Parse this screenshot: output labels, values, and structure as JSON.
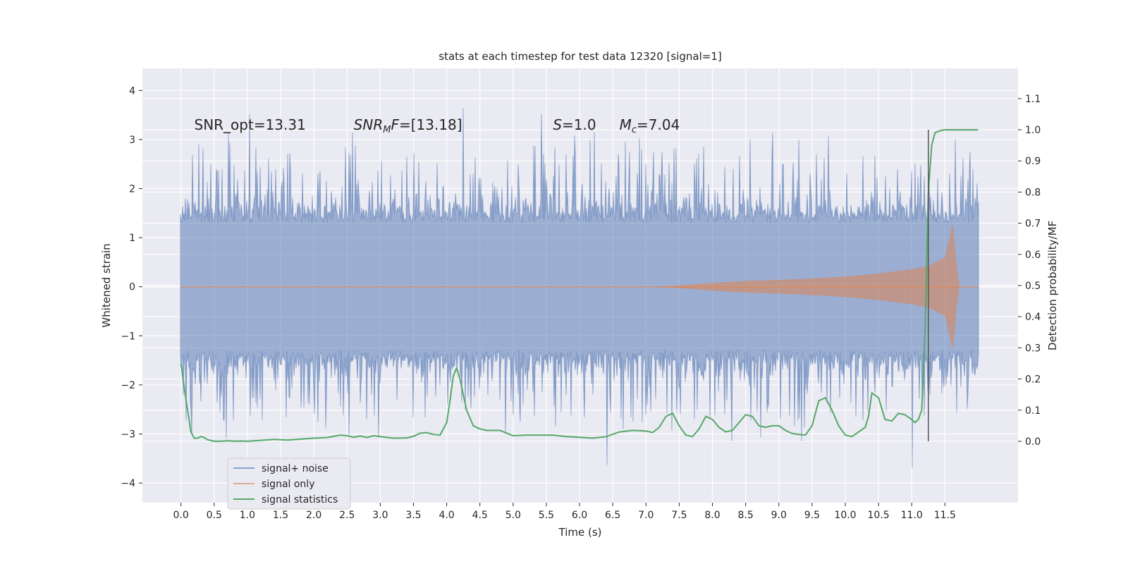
{
  "chart_data": {
    "type": "line",
    "title": "stats at each timestep for test data 12320 [signal=1]",
    "xlabel": "Time (s)",
    "ylabel_left": "Whitened strain",
    "ylabel_right": "Detection probability/MF",
    "xlim": [
      -0.58,
      12.6
    ],
    "ylim_left": [
      -4.4,
      4.45
    ],
    "ylim_right": [
      -0.197,
      1.197
    ],
    "x_ticks": [
      "0.0",
      "0.5",
      "1.0",
      "1.5",
      "2.0",
      "2.5",
      "3.0",
      "3.5",
      "4.0",
      "4.5",
      "5.0",
      "5.5",
      "6.0",
      "6.5",
      "7.0",
      "7.5",
      "8.0",
      "8.5",
      "9.0",
      "9.5",
      "10.0",
      "10.5",
      "11.0",
      "11.5"
    ],
    "y_ticks_left": [
      "4",
      "3",
      "2",
      "1",
      "0",
      "−1",
      "−2",
      "−3",
      "−4"
    ],
    "y_ticks_right": [
      "1.1",
      "1.0",
      "0.9",
      "0.8",
      "0.7",
      "0.6",
      "0.5",
      "0.4",
      "0.3",
      "0.2",
      "0.1",
      "0.0"
    ],
    "grid": true,
    "legend_position": "lower-left",
    "annotations": [
      {
        "text": "SNR_opt=13.31",
        "x": 0.2,
        "y": 3.3
      },
      {
        "text": "SNR_MF=[13.18]",
        "x": 2.6,
        "y": 3.3
      },
      {
        "text": "S=1.0",
        "x": 5.6,
        "y": 3.3
      },
      {
        "text": "M_c=7.04",
        "x": 6.6,
        "y": 3.3
      }
    ],
    "vertical_line": {
      "x": 11.25,
      "y_range": [
        0.0,
        1.0
      ]
    },
    "series": [
      {
        "name": "signal+ noise",
        "color": "#4c72b0",
        "x_range": [
          0.0,
          12.0
        ],
        "description_stats": {
          "typical_abs": 1.3,
          "peak_max": 4.1,
          "peak_min": -4.0
        }
      },
      {
        "name": "signal only",
        "color": "#dd8452",
        "envelope": {
          "x": [
            0.0,
            7.0,
            7.5,
            8.0,
            8.5,
            9.0,
            9.5,
            10.0,
            10.5,
            11.0,
            11.25,
            11.5,
            11.62,
            11.68,
            11.72,
            12.0
          ],
          "amplitude": [
            0.0,
            0.0,
            0.03,
            0.08,
            0.12,
            0.14,
            0.17,
            0.21,
            0.27,
            0.36,
            0.42,
            0.6,
            1.3,
            0.4,
            0.0,
            0.0
          ]
        }
      },
      {
        "name": "signal statistics",
        "color": "#55a868",
        "axis": "right",
        "x": [
          0.0,
          0.05,
          0.1,
          0.15,
          0.2,
          0.25,
          0.3,
          0.35,
          0.4,
          0.5,
          0.6,
          0.7,
          0.8,
          0.9,
          1.0,
          1.2,
          1.4,
          1.6,
          1.8,
          2.0,
          2.2,
          2.4,
          2.5,
          2.6,
          2.7,
          2.8,
          2.9,
          3.0,
          3.2,
          3.4,
          3.5,
          3.6,
          3.7,
          3.8,
          3.9,
          4.0,
          4.05,
          4.1,
          4.15,
          4.2,
          4.25,
          4.3,
          4.4,
          4.5,
          4.6,
          4.8,
          5.0,
          5.2,
          5.4,
          5.6,
          5.8,
          6.0,
          6.2,
          6.4,
          6.6,
          6.8,
          7.0,
          7.1,
          7.2,
          7.3,
          7.4,
          7.5,
          7.6,
          7.7,
          7.8,
          7.9,
          8.0,
          8.1,
          8.2,
          8.3,
          8.4,
          8.5,
          8.6,
          8.7,
          8.8,
          8.9,
          9.0,
          9.1,
          9.2,
          9.3,
          9.4,
          9.5,
          9.6,
          9.7,
          9.8,
          9.9,
          10.0,
          10.1,
          10.2,
          10.3,
          10.35,
          10.4,
          10.5,
          10.6,
          10.7,
          10.8,
          10.9,
          11.0,
          11.05,
          11.1,
          11.15,
          11.2,
          11.25,
          11.3,
          11.35,
          11.4,
          11.45,
          11.5,
          11.6,
          11.8,
          12.0
        ],
        "values": [
          0.25,
          0.17,
          0.1,
          0.03,
          0.01,
          0.01,
          0.015,
          0.012,
          0.005,
          0.0,
          0.0,
          0.002,
          0.0,
          0.001,
          0.0,
          0.003,
          0.006,
          0.004,
          0.007,
          0.01,
          0.012,
          0.02,
          0.018,
          0.013,
          0.017,
          0.012,
          0.018,
          0.015,
          0.01,
          0.011,
          0.016,
          0.026,
          0.028,
          0.022,
          0.02,
          0.06,
          0.13,
          0.21,
          0.235,
          0.2,
          0.15,
          0.1,
          0.05,
          0.04,
          0.035,
          0.035,
          0.018,
          0.02,
          0.02,
          0.02,
          0.015,
          0.013,
          0.01,
          0.015,
          0.03,
          0.035,
          0.033,
          0.028,
          0.045,
          0.08,
          0.09,
          0.05,
          0.02,
          0.015,
          0.04,
          0.08,
          0.07,
          0.045,
          0.03,
          0.035,
          0.06,
          0.085,
          0.08,
          0.05,
          0.045,
          0.05,
          0.05,
          0.035,
          0.025,
          0.022,
          0.02,
          0.05,
          0.13,
          0.14,
          0.1,
          0.05,
          0.02,
          0.015,
          0.03,
          0.045,
          0.08,
          0.155,
          0.14,
          0.07,
          0.065,
          0.09,
          0.085,
          0.07,
          0.06,
          0.07,
          0.1,
          0.35,
          0.8,
          0.95,
          0.99,
          0.995,
          0.998,
          1.0,
          1.0,
          1.0,
          1.0
        ]
      }
    ]
  }
}
